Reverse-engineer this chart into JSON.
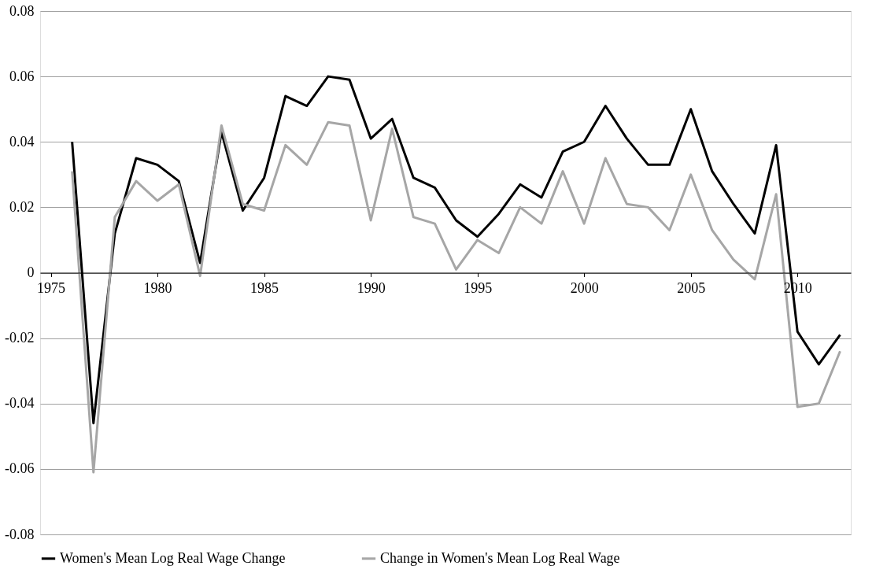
{
  "chart_data": {
    "type": "line",
    "x": [
      1976,
      1977,
      1978,
      1979,
      1980,
      1981,
      1982,
      1983,
      1984,
      1985,
      1986,
      1987,
      1988,
      1989,
      1990,
      1991,
      1992,
      1993,
      1994,
      1995,
      1996,
      1997,
      1998,
      1999,
      2000,
      2001,
      2002,
      2003,
      2004,
      2005,
      2006,
      2007,
      2008,
      2009,
      2010,
      2011,
      2012
    ],
    "series": [
      {
        "name": "Women's Mean Log Real Wage Change",
        "color": "#000000",
        "values": [
          0.04,
          -0.046,
          0.012,
          0.035,
          0.033,
          0.028,
          0.003,
          0.043,
          0.019,
          0.029,
          0.054,
          0.051,
          0.06,
          0.059,
          0.041,
          0.047,
          0.029,
          0.026,
          0.016,
          0.011,
          0.018,
          0.027,
          0.023,
          0.037,
          0.04,
          0.051,
          0.041,
          0.033,
          0.033,
          0.05,
          0.031,
          0.021,
          0.012,
          0.039,
          -0.018,
          -0.028,
          -0.019
        ]
      },
      {
        "name": "Change in Women's Mean Log Real Wage",
        "color": "#a6a6a6",
        "values": [
          0.031,
          -0.061,
          0.017,
          0.028,
          0.022,
          0.027,
          -0.001,
          0.045,
          0.021,
          0.019,
          0.039,
          0.033,
          0.046,
          0.045,
          0.016,
          0.044,
          0.017,
          0.015,
          0.001,
          0.01,
          0.006,
          0.02,
          0.015,
          0.031,
          0.015,
          0.035,
          0.021,
          0.02,
          0.013,
          0.03,
          0.013,
          0.004,
          -0.002,
          0.024,
          -0.041,
          -0.04,
          -0.024
        ]
      }
    ],
    "xlim": [
      1974.5,
      2012.5
    ],
    "xticks": [
      1975,
      1980,
      1985,
      1990,
      1995,
      2000,
      2005,
      2010
    ],
    "ylim": [
      -0.08,
      0.08
    ],
    "yticks": [
      -0.08,
      -0.06,
      -0.04,
      -0.02,
      0,
      0.02,
      0.04,
      0.06,
      0.08
    ],
    "grid": "y",
    "legend": "bottom",
    "marker": "none",
    "line_style": "solid"
  }
}
